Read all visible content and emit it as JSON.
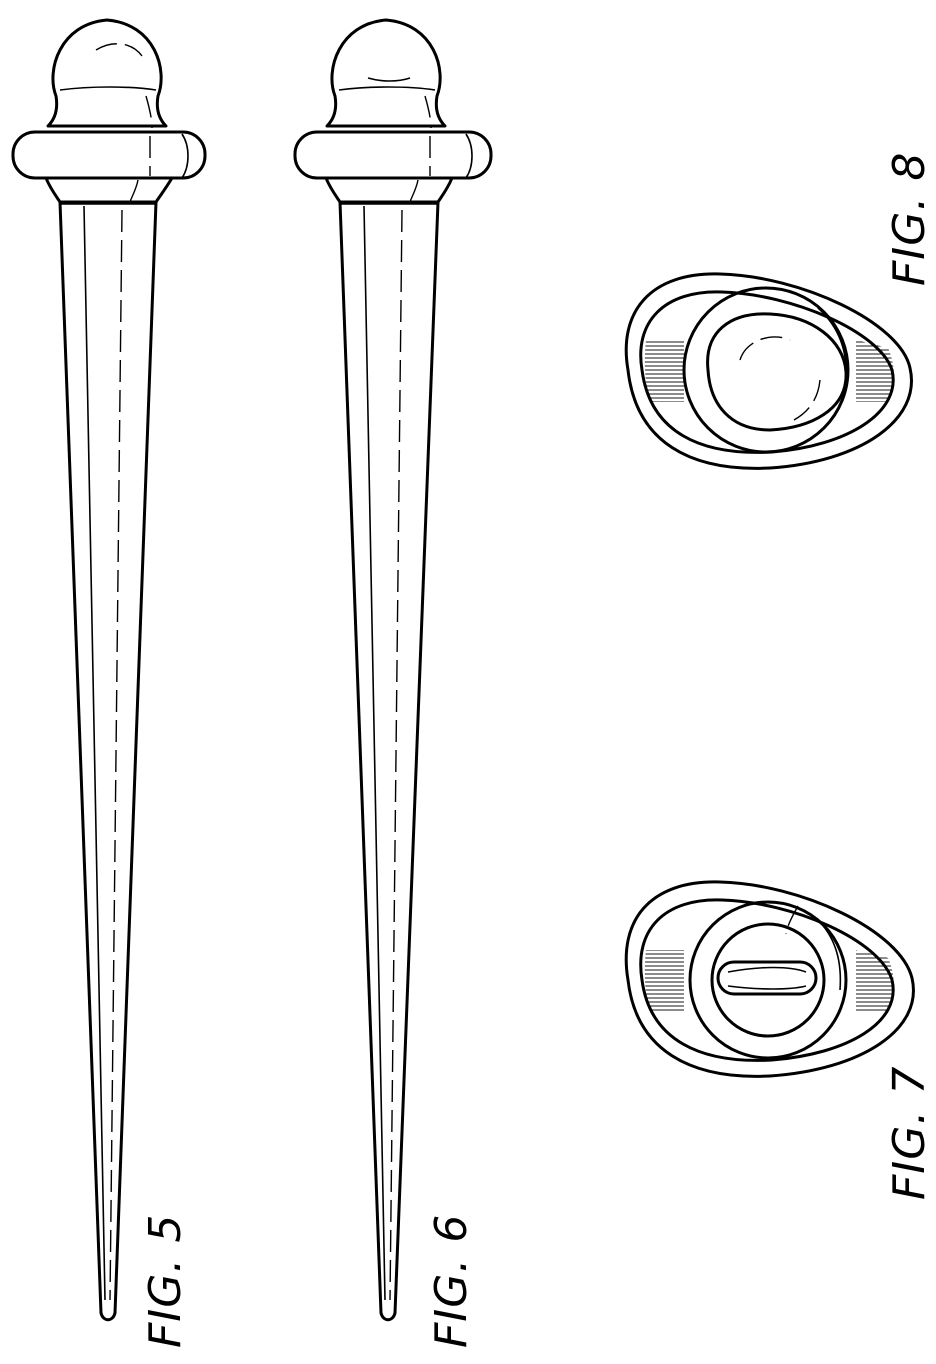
{
  "figures": {
    "fig5": {
      "label": "FIG. 5"
    },
    "fig6": {
      "label": "FIG. 6"
    },
    "fig7": {
      "label": "FIG. 7"
    },
    "fig8": {
      "label": "FIG. 8"
    }
  },
  "colors": {
    "ink": "#000000",
    "paper": "#ffffff"
  }
}
